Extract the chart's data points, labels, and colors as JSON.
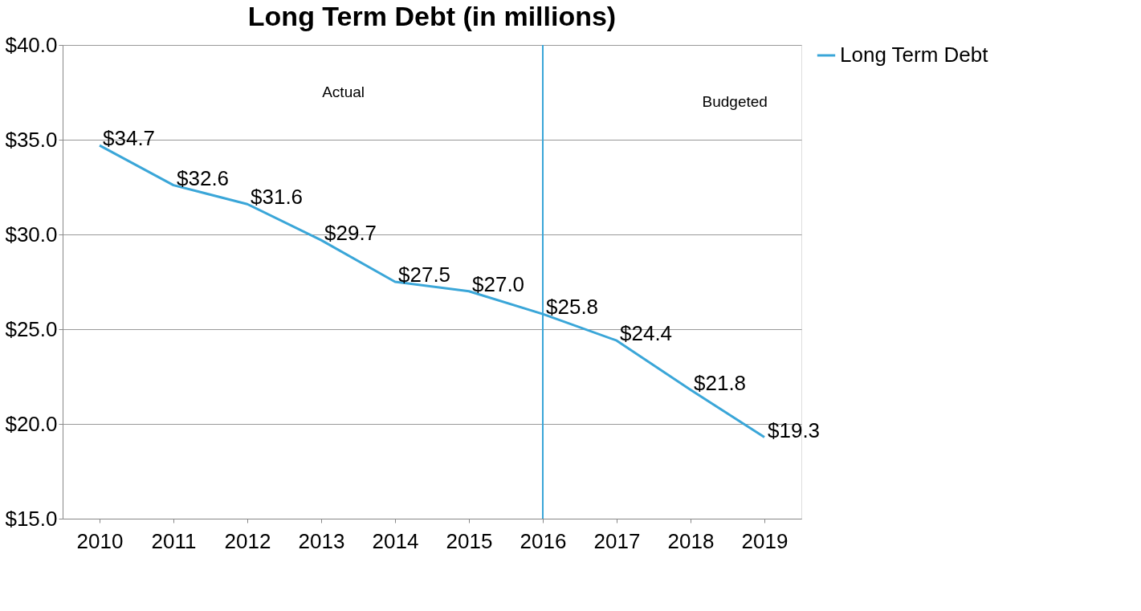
{
  "chart_data": {
    "type": "line",
    "title": "Long Term Debt (in millions)",
    "categories": [
      "2010",
      "2011",
      "2012",
      "2013",
      "2014",
      "2015",
      "2016",
      "2017",
      "2018",
      "2019"
    ],
    "series": [
      {
        "name": "Long Term Debt",
        "color": "#3aa6d8",
        "values": [
          34.7,
          32.6,
          31.6,
          29.7,
          27.5,
          27.0,
          25.8,
          24.4,
          21.8,
          19.3
        ],
        "value_labels": [
          "$34.7",
          "$32.6",
          "$31.6",
          "$29.7",
          "$27.5",
          "$27.0",
          "$25.8",
          "$24.4",
          "$21.8",
          "$19.3"
        ]
      }
    ],
    "ylim": [
      15,
      40
    ],
    "yticks": [
      {
        "value": 15,
        "label": "$15.0"
      },
      {
        "value": 20,
        "label": "$20.0"
      },
      {
        "value": 25,
        "label": "$25.0"
      },
      {
        "value": 30,
        "label": "$30.0"
      },
      {
        "value": 35,
        "label": "$35.0"
      },
      {
        "value": 40,
        "label": "$40.0"
      }
    ],
    "ref_lines": [
      {
        "axis": "x",
        "value": "2016",
        "color": "#3aa6d8"
      }
    ],
    "annotations": [
      "Actual",
      "Budgeted"
    ],
    "grid": "y",
    "legend": "right",
    "marker": "none",
    "line_style": "solid"
  }
}
